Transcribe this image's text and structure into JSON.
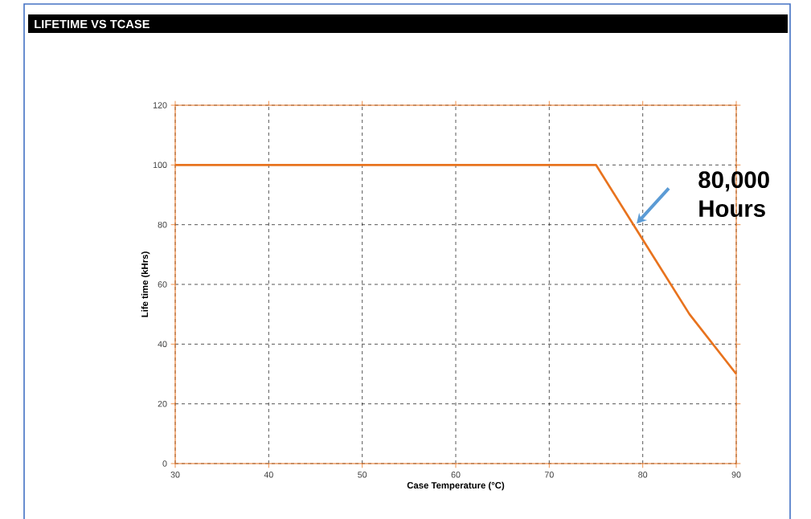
{
  "chart_data": {
    "type": "line",
    "title": "LIFETIME VS TCASE",
    "xlabel": "Case Temperature (°C)",
    "ylabel": "Life time (kHrs)",
    "x": [
      30,
      75,
      80,
      85,
      90
    ],
    "series": [
      {
        "color": "#e8731e",
        "values": [
          100,
          100,
          75,
          50,
          30
        ]
      }
    ],
    "xlim": [
      30,
      90
    ],
    "xticks": [
      30,
      40,
      50,
      60,
      70,
      80,
      90
    ],
    "ylim": [
      0,
      120
    ],
    "yticks": [
      0,
      20,
      40,
      60,
      80,
      100,
      120
    ],
    "grid": true,
    "marker": "none",
    "line_style": "solid",
    "annotations": [
      {
        "text": "80,000 Hours",
        "x": 79,
        "y": 80
      }
    ]
  }
}
